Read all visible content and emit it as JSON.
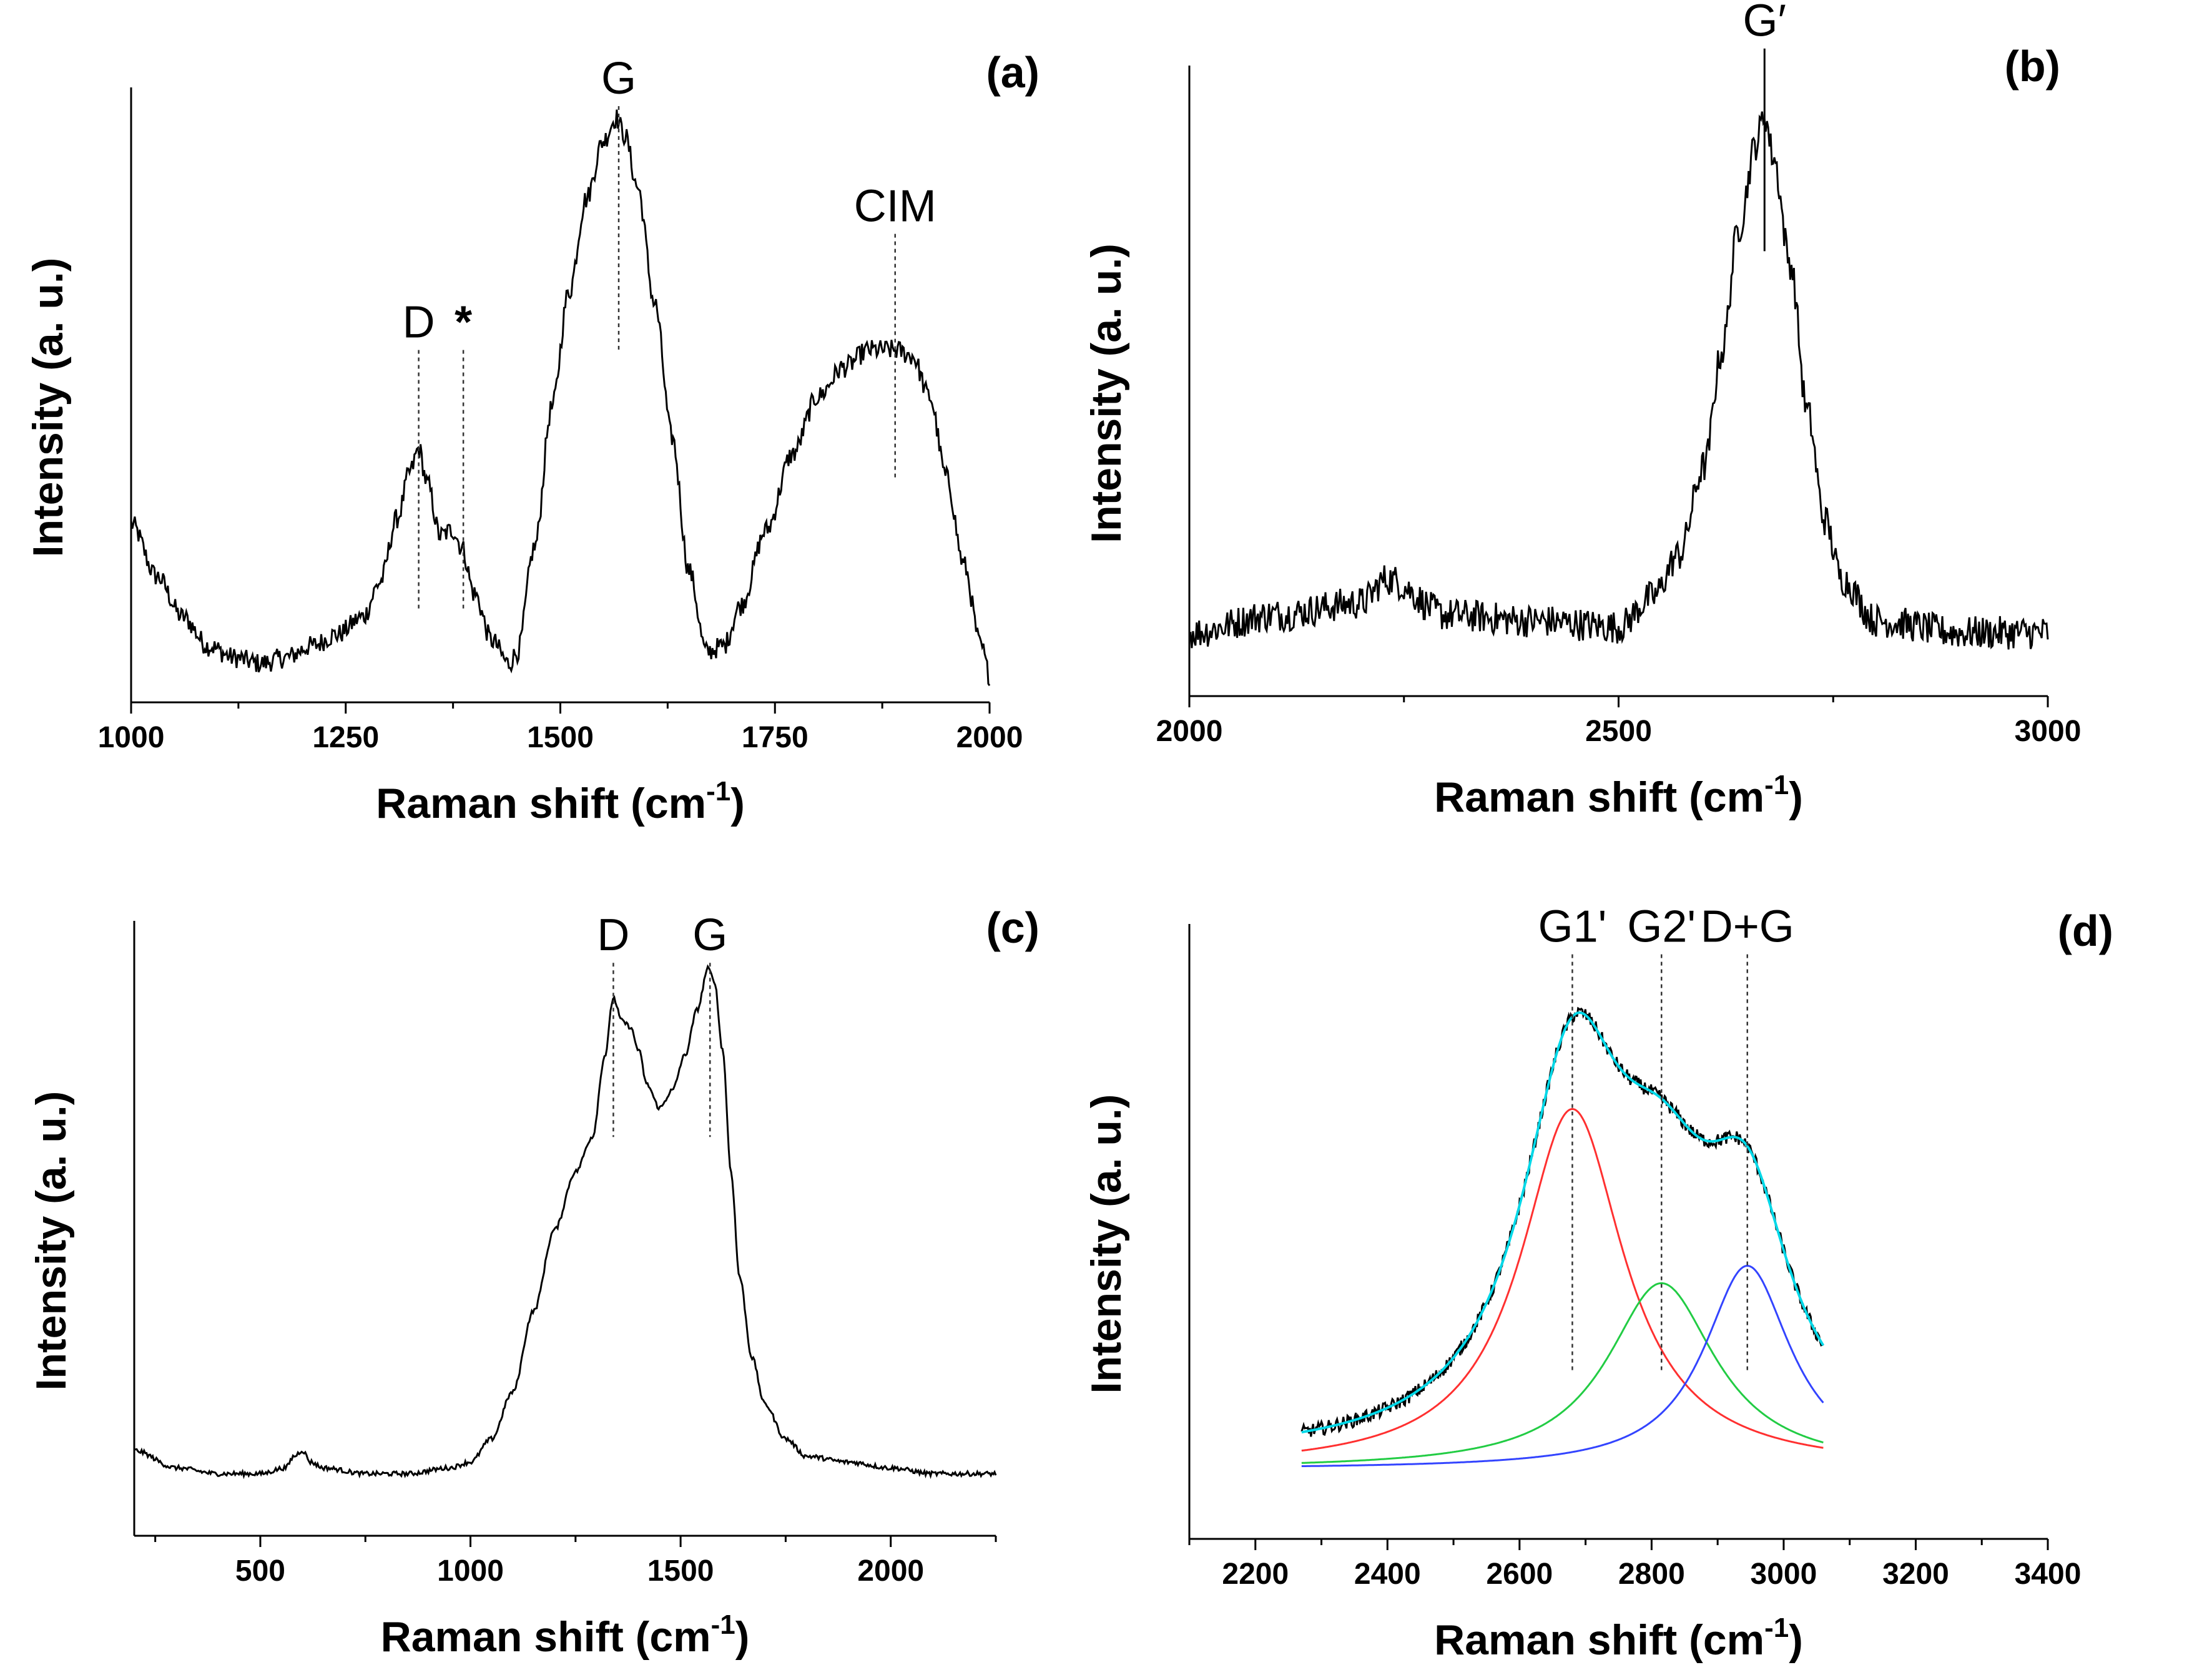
{
  "figure": {
    "axis_color": "#000000",
    "spectrum_color": "#000000",
    "marker_color": "#333333"
  },
  "chart_data": [
    {
      "id": "a",
      "type": "line",
      "panel_label": "(a)",
      "title": "",
      "xlabel": "Raman shift (cm-1)",
      "xlabel_main": "Raman shift (cm",
      "xlabel_sup": "-1",
      "xlabel_tail": ")",
      "ylabel": "Intensity (a. u.)",
      "xlim": [
        1000,
        2000
      ],
      "ylim": [
        0,
        1
      ],
      "xticks": [
        1000,
        1250,
        1500,
        1750,
        2000
      ],
      "tick_labels": [
        "1000",
        "1250",
        "1500",
        "1750",
        "2000"
      ],
      "grid": false,
      "spectrum": {
        "x": [
          1000,
          1030,
          1060,
          1090,
          1120,
          1150,
          1180,
          1210,
          1240,
          1270,
          1290,
          1310,
          1325,
          1335,
          1345,
          1360,
          1375,
          1385,
          1400,
          1420,
          1440,
          1450,
          1470,
          1490,
          1510,
          1530,
          1550,
          1565,
          1575,
          1590,
          1610,
          1630,
          1650,
          1670,
          1690,
          1710,
          1740,
          1770,
          1800,
          1830,
          1860,
          1890,
          1910,
          1930,
          1950,
          1970,
          1990,
          2000
        ],
        "y": [
          0.28,
          0.19,
          0.12,
          0.07,
          0.05,
          0.04,
          0.05,
          0.07,
          0.09,
          0.12,
          0.18,
          0.29,
          0.37,
          0.41,
          0.35,
          0.26,
          0.27,
          0.24,
          0.16,
          0.08,
          0.04,
          0.06,
          0.24,
          0.48,
          0.68,
          0.84,
          0.94,
          0.98,
          0.95,
          0.86,
          0.66,
          0.43,
          0.2,
          0.06,
          0.07,
          0.14,
          0.27,
          0.4,
          0.5,
          0.55,
          0.58,
          0.58,
          0.57,
          0.5,
          0.36,
          0.21,
          0.07,
          0.02
        ]
      },
      "noise": 0.018,
      "markers": [
        {
          "x": 1335,
          "label": "D",
          "y_top": 0.58,
          "y_bottom": 0.13,
          "style": "dotted"
        },
        {
          "x": 1387,
          "label": "*",
          "y_top": 0.58,
          "y_bottom": 0.13,
          "style": "dotted"
        },
        {
          "x": 1568,
          "label": "G",
          "y_top": 1.0,
          "y_bottom": 0.58,
          "style": "dotted"
        },
        {
          "x": 1890,
          "label": "CIM",
          "y_top": 0.78,
          "y_bottom": 0.36,
          "style": "dotted"
        }
      ]
    },
    {
      "id": "b",
      "type": "line",
      "panel_label": "(b)",
      "title": "",
      "xlabel": "Raman shift (cm-1)",
      "xlabel_main": "Raman shift (cm",
      "xlabel_sup": "-1",
      "xlabel_tail": ")",
      "ylabel": "Intensity (a. u.)",
      "xlim": [
        2000,
        3000
      ],
      "ylim": [
        0,
        1
      ],
      "xticks": [
        2000,
        2500,
        3000
      ],
      "tick_labels": [
        "2000",
        "2500",
        "3000"
      ],
      "grid": false,
      "spectrum": {
        "x": [
          2000,
          2100,
          2200,
          2230,
          2300,
          2400,
          2500,
          2540,
          2570,
          2600,
          2620,
          2640,
          2660,
          2670,
          2680,
          2700,
          2720,
          2740,
          2760,
          2800,
          2900,
          3000
        ],
        "y": [
          0.08,
          0.11,
          0.13,
          0.17,
          0.11,
          0.1,
          0.09,
          0.14,
          0.21,
          0.36,
          0.55,
          0.76,
          0.9,
          0.95,
          0.88,
          0.7,
          0.45,
          0.27,
          0.17,
          0.1,
          0.08,
          0.08
        ]
      },
      "noise": 0.028,
      "markers": [
        {
          "x": 2670,
          "label": "G′",
          "y_top": 1.06,
          "y_bottom": 0.72,
          "style": "solid"
        }
      ]
    },
    {
      "id": "c",
      "type": "line",
      "panel_label": "(c)",
      "title": "",
      "xlabel": "Raman shift (cm-1)",
      "xlabel_main": "Raman shift (cm",
      "xlabel_sup": "-1",
      "xlabel_tail": ")",
      "ylabel": "Intensity (a. u.)",
      "xlim": [
        200,
        2250
      ],
      "ylim": [
        0,
        1
      ],
      "xticks": [
        500,
        1000,
        1500,
        2000
      ],
      "tick_labels": [
        "500",
        "1000",
        "1500",
        "2000"
      ],
      "grid": false,
      "spectrum": {
        "x": [
          200,
          300,
          400,
          500,
          560,
          580,
          600,
          620,
          650,
          750,
          850,
          950,
          1000,
          1050,
          1100,
          1150,
          1200,
          1250,
          1290,
          1320,
          1340,
          1360,
          1380,
          1400,
          1420,
          1450,
          1480,
          1510,
          1540,
          1565,
          1580,
          1600,
          1620,
          1640,
          1670,
          1700,
          1750,
          1800,
          1900,
          2000,
          2100,
          2250
        ],
        "y": [
          0.12,
          0.09,
          0.08,
          0.08,
          0.09,
          0.11,
          0.12,
          0.1,
          0.09,
          0.08,
          0.08,
          0.09,
          0.1,
          0.14,
          0.22,
          0.36,
          0.5,
          0.6,
          0.66,
          0.8,
          0.9,
          0.86,
          0.85,
          0.81,
          0.75,
          0.71,
          0.74,
          0.8,
          0.88,
          0.95,
          0.93,
          0.81,
          0.6,
          0.42,
          0.28,
          0.2,
          0.14,
          0.11,
          0.1,
          0.09,
          0.08,
          0.08
        ]
      },
      "noise": 0.004,
      "markers": [
        {
          "x": 1340,
          "label": "D",
          "y_top": 0.96,
          "y_bottom": 0.66,
          "style": "dotted"
        },
        {
          "x": 1570,
          "label": "G",
          "y_top": 0.96,
          "y_bottom": 0.66,
          "style": "dotted"
        }
      ]
    },
    {
      "id": "d",
      "type": "line",
      "panel_label": "(d)",
      "title": "",
      "xlabel": "Raman shift (cm-1)",
      "xlabel_main": "Raman shift (cm",
      "xlabel_sup": "-1",
      "xlabel_tail": ")",
      "ylabel": "Intensity (a. u.)",
      "xlim": [
        2100,
        3400
      ],
      "ylim": [
        0,
        1
      ],
      "xticks": [
        2200,
        2400,
        2600,
        2800,
        3000,
        3200,
        3400
      ],
      "tick_labels": [
        "2200",
        "2400",
        "2600",
        "2800",
        "3000",
        "3200",
        "3400"
      ],
      "grid": false,
      "baseline": 0.11,
      "lorentzians": [
        {
          "name": "G1'",
          "center": 2680,
          "amplitude": 0.62,
          "hwhm": 95,
          "color": "#ff3030"
        },
        {
          "name": "G2'",
          "center": 2815,
          "amplitude": 0.32,
          "hwhm": 100,
          "color": "#22cc44"
        },
        {
          "name": "D+G",
          "center": 2945,
          "amplitude": 0.35,
          "hwhm": 80,
          "color": "#3344ff"
        }
      ],
      "fit_color": "#00d8e8",
      "data_range": [
        2270,
        3060
      ],
      "noise": 0.012,
      "markers": [
        {
          "x": 2680,
          "label": "G1'",
          "y_top": 0.98,
          "y_bottom": 0.26,
          "style": "dotted"
        },
        {
          "x": 2815,
          "label": "G2'",
          "y_top": 0.98,
          "y_bottom": 0.26,
          "style": "dotted"
        },
        {
          "x": 2945,
          "label": "D+G",
          "y_top": 0.98,
          "y_bottom": 0.26,
          "style": "dotted"
        }
      ]
    }
  ]
}
